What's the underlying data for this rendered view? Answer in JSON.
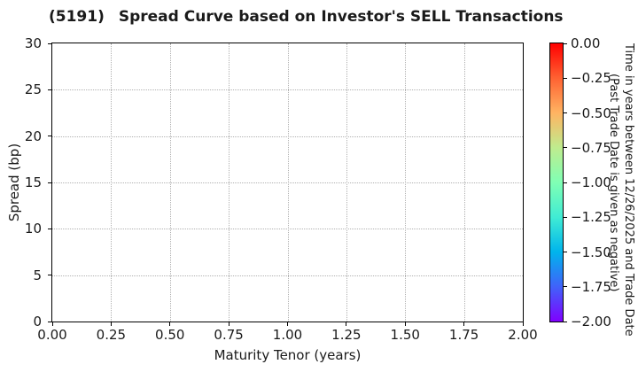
{
  "title": {
    "code": "(5191)",
    "text": "Spread Curve based on Investor's SELL Transactions"
  },
  "colors": {
    "background": "#ffffff",
    "text": "#1a1a1a",
    "spine": "#000000",
    "grid": "#b0b0b0"
  },
  "chart_data": {
    "type": "scatter",
    "title": "(5191)  Spread Curve based on Investor's SELL Transactions",
    "xlabel": "Maturity Tenor (years)",
    "ylabel": "Spread (bp)",
    "xlim": [
      0.0,
      2.0
    ],
    "ylim": [
      0,
      30
    ],
    "xticks": [
      "0.00",
      "0.25",
      "0.50",
      "0.75",
      "1.00",
      "1.25",
      "1.50",
      "1.75",
      "2.00"
    ],
    "yticks_bottom_to_top": [
      "0",
      "5",
      "10",
      "15",
      "20",
      "25",
      "30"
    ],
    "grid": {
      "style": "dotted",
      "color": "#b0b0b0"
    },
    "legend": "none",
    "series": [
      {
        "name": "investor-sell-transactions",
        "points": []
      }
    ],
    "colorbar": {
      "colormap": "rainbow",
      "value_range_top_to_bottom": [
        0.0,
        -2.0
      ],
      "ticks_top_to_bottom": [
        "0.00",
        "−0.25",
        "−0.50",
        "−0.75",
        "−1.00",
        "−1.25",
        "−1.50",
        "−1.75",
        "−2.00"
      ],
      "label_lines": [
        "Time in years between 12/26/2025 and Trade Date",
        "(Past Trade Date is given as negative)"
      ],
      "gradient_top_to_bottom": [
        {
          "pos": 0,
          "color": "#ff0000"
        },
        {
          "pos": 12.5,
          "color": "#ff6232"
        },
        {
          "pos": 25,
          "color": "#ffb462"
        },
        {
          "pos": 37.5,
          "color": "#bfec8e"
        },
        {
          "pos": 50,
          "color": "#80ffb4"
        },
        {
          "pos": 62.5,
          "color": "#40ecd4"
        },
        {
          "pos": 75,
          "color": "#00b4ec"
        },
        {
          "pos": 87.5,
          "color": "#4062fa"
        },
        {
          "pos": 100,
          "color": "#8000ff"
        }
      ]
    }
  }
}
